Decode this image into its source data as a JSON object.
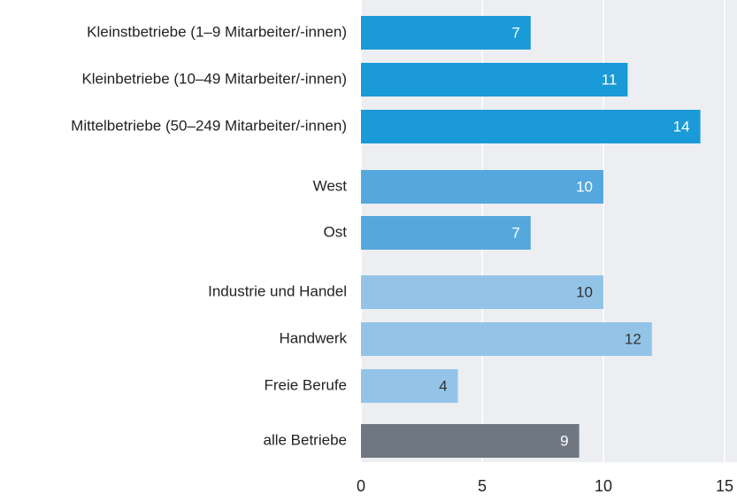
{
  "chart_data": {
    "type": "bar",
    "orientation": "horizontal",
    "categories": [
      "Kleinstbetriebe (1–9 Mitarbeiter/-innen)",
      "Kleinbetriebe (10–49 Mitarbeiter/-innen)",
      "Mittelbetriebe (50–249 Mitarbeiter/-innen)",
      "West",
      "Ost",
      "Industrie und Handel",
      "Handwerk",
      "Freie Berufe",
      "alle Betriebe"
    ],
    "values": [
      7,
      11,
      14,
      10,
      7,
      10,
      12,
      4,
      9
    ],
    "colors": [
      "#1a9ad6",
      "#1a9ad6",
      "#1a9ad6",
      "#55a8de",
      "#55a8de",
      "#93c4e8",
      "#93c4e8",
      "#93c4e8",
      "#6f7782"
    ],
    "value_label_colors": [
      "#ffffff",
      "#ffffff",
      "#ffffff",
      "#ffffff",
      "#ffffff",
      "#333333",
      "#333333",
      "#333333",
      "#ffffff"
    ],
    "xlim": [
      0,
      15
    ],
    "xticks": [
      0,
      5,
      10,
      15
    ],
    "grid": true
  }
}
